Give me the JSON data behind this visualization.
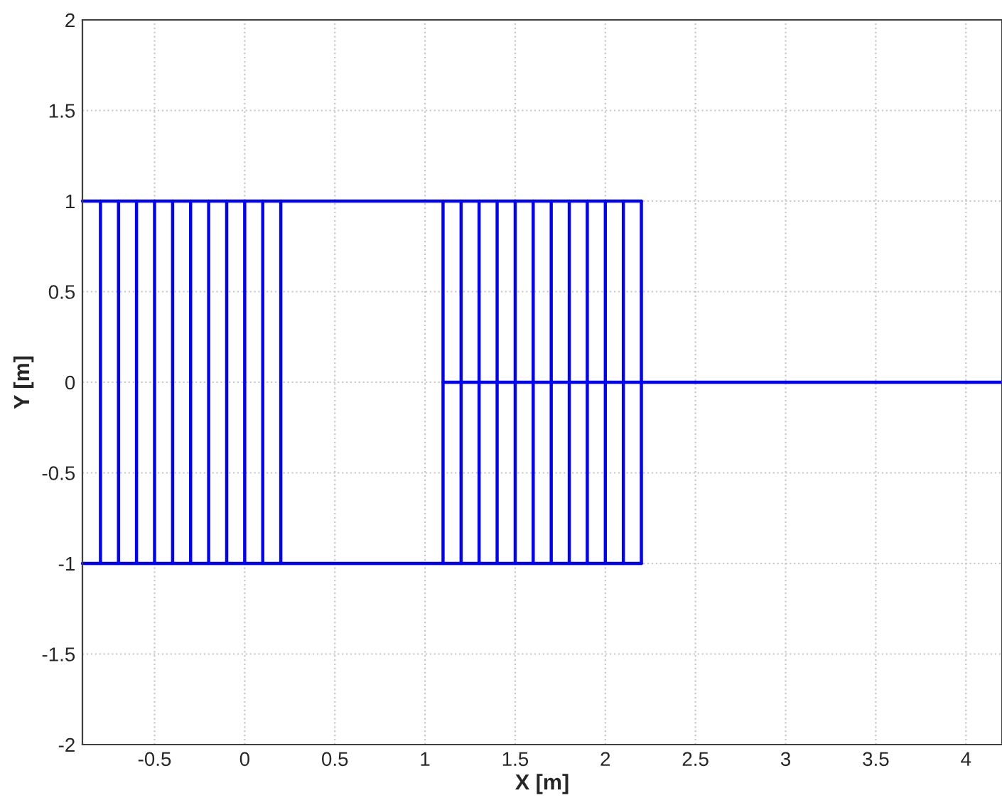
{
  "chart_data": {
    "type": "line",
    "xlabel": "X [m]",
    "ylabel": "Y [m]",
    "xlim": [
      -0.9,
      4.2
    ],
    "ylim": [
      -2,
      2
    ],
    "xticks": [
      -0.5,
      0,
      0.5,
      1,
      1.5,
      2,
      2.5,
      3,
      3.5,
      4
    ],
    "yticks": [
      -2,
      -1.5,
      -1,
      -0.5,
      0,
      0.5,
      1,
      1.5,
      2
    ],
    "grid": true,
    "marker": "none",
    "line_style": "solid",
    "series": [
      {
        "color": "#0000ff",
        "x": [
          -0.9,
          2.2
        ],
        "values": [
          1,
          1
        ]
      },
      {
        "color": "#0000ff",
        "x": [
          -0.9,
          2.2
        ],
        "values": [
          -1,
          -1
        ]
      },
      {
        "color": "#0000ff",
        "x": [
          1.1,
          4.2
        ],
        "values": [
          0,
          0
        ]
      },
      {
        "color": "#0000ff",
        "x": [
          -0.8,
          -0.8
        ],
        "values": [
          -1,
          1
        ]
      },
      {
        "color": "#0000ff",
        "x": [
          -0.7,
          -0.7
        ],
        "values": [
          -1,
          1
        ]
      },
      {
        "color": "#0000ff",
        "x": [
          -0.6,
          -0.6
        ],
        "values": [
          -1,
          1
        ]
      },
      {
        "color": "#0000ff",
        "x": [
          -0.5,
          -0.5
        ],
        "values": [
          -1,
          1
        ]
      },
      {
        "color": "#0000ff",
        "x": [
          -0.4,
          -0.4
        ],
        "values": [
          -1,
          1
        ]
      },
      {
        "color": "#0000ff",
        "x": [
          -0.3,
          -0.3
        ],
        "values": [
          -1,
          1
        ]
      },
      {
        "color": "#0000ff",
        "x": [
          -0.2,
          -0.2
        ],
        "values": [
          -1,
          1
        ]
      },
      {
        "color": "#0000ff",
        "x": [
          -0.1,
          -0.1
        ],
        "values": [
          -1,
          1
        ]
      },
      {
        "color": "#0000ff",
        "x": [
          0,
          0
        ],
        "values": [
          -1,
          1
        ]
      },
      {
        "color": "#0000ff",
        "x": [
          0.1,
          0.1
        ],
        "values": [
          -1,
          1
        ]
      },
      {
        "color": "#0000ff",
        "x": [
          0.2,
          0.2
        ],
        "values": [
          -1,
          1
        ]
      },
      {
        "color": "#0000ff",
        "x": [
          1.1,
          1.1
        ],
        "values": [
          -1,
          1
        ]
      },
      {
        "color": "#0000ff",
        "x": [
          1.2,
          1.2
        ],
        "values": [
          -1,
          1
        ]
      },
      {
        "color": "#0000ff",
        "x": [
          1.3,
          1.3
        ],
        "values": [
          -1,
          1
        ]
      },
      {
        "color": "#0000ff",
        "x": [
          1.4,
          1.4
        ],
        "values": [
          -1,
          1
        ]
      },
      {
        "color": "#0000ff",
        "x": [
          1.5,
          1.5
        ],
        "values": [
          -1,
          1
        ]
      },
      {
        "color": "#0000ff",
        "x": [
          1.6,
          1.6
        ],
        "values": [
          -1,
          1
        ]
      },
      {
        "color": "#0000ff",
        "x": [
          1.7,
          1.7
        ],
        "values": [
          -1,
          1
        ]
      },
      {
        "color": "#0000ff",
        "x": [
          1.8,
          1.8
        ],
        "values": [
          -1,
          1
        ]
      },
      {
        "color": "#0000ff",
        "x": [
          1.9,
          1.9
        ],
        "values": [
          -1,
          1
        ]
      },
      {
        "color": "#0000ff",
        "x": [
          2.0,
          2.0
        ],
        "values": [
          -1,
          1
        ]
      },
      {
        "color": "#0000ff",
        "x": [
          2.1,
          2.1
        ],
        "values": [
          -1,
          1
        ]
      },
      {
        "color": "#0000ff",
        "x": [
          2.2,
          2.2
        ],
        "values": [
          -1,
          1
        ]
      }
    ]
  }
}
